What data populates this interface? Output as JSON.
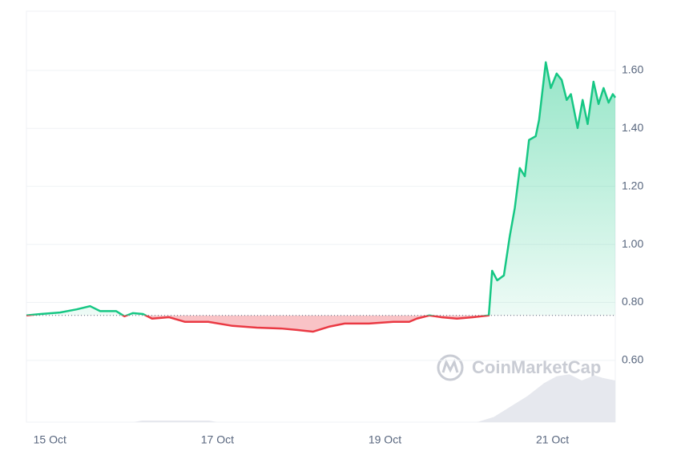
{
  "chart_data": {
    "type": "line",
    "watermark": "CoinMarketCap",
    "baseline": 0.755,
    "x": [
      14.72,
      14.89,
      15.12,
      15.32,
      15.48,
      15.6,
      15.79,
      15.89,
      15.99,
      16.11,
      16.22,
      16.42,
      16.61,
      16.89,
      17.18,
      17.47,
      17.76,
      17.95,
      18.14,
      18.33,
      18.52,
      18.81,
      19.1,
      19.29,
      19.38,
      19.53,
      19.67,
      19.86,
      20.05,
      20.24,
      20.28,
      20.34,
      20.42,
      20.49,
      20.55,
      20.61,
      20.67,
      20.72,
      20.8,
      20.84,
      20.92,
      20.98,
      21.05,
      21.11,
      21.17,
      21.22,
      21.3,
      21.36,
      21.42,
      21.49,
      21.55,
      21.61,
      21.67,
      21.72,
      21.75
    ],
    "series": [
      {
        "name": "Price",
        "color_up": "#16c784",
        "color_down": "#ea3943",
        "values": [
          0.755,
          0.76,
          0.765,
          0.776,
          0.787,
          0.77,
          0.77,
          0.752,
          0.763,
          0.76,
          0.744,
          0.749,
          0.733,
          0.733,
          0.719,
          0.713,
          0.71,
          0.705,
          0.699,
          0.716,
          0.727,
          0.727,
          0.733,
          0.733,
          0.744,
          0.755,
          0.749,
          0.744,
          0.749,
          0.755,
          0.909,
          0.876,
          0.893,
          1.028,
          1.125,
          1.263,
          1.235,
          1.36,
          1.373,
          1.429,
          1.628,
          1.539,
          1.589,
          1.567,
          1.498,
          1.518,
          1.401,
          1.498,
          1.415,
          1.561,
          1.484,
          1.539,
          1.489,
          1.518,
          1.506
        ]
      }
    ],
    "volume": {
      "color": "#e6e8ee",
      "vlim": [
        0,
        100
      ],
      "x": [
        14.72,
        15.5,
        16.0,
        16.1,
        16.9,
        17.0,
        20.1,
        20.3,
        20.5,
        20.7,
        20.9,
        21.05,
        21.2,
        21.35,
        21.5,
        21.6,
        21.75
      ],
      "values": [
        0,
        0,
        0,
        3,
        3,
        0,
        0,
        10,
        30,
        50,
        75,
        88,
        92,
        80,
        90,
        85,
        80
      ]
    },
    "xlim": [
      14.72,
      21.75
    ],
    "xticks": [
      {
        "value": 15,
        "label": "15 Oct"
      },
      {
        "value": 17,
        "label": "17 Oct"
      },
      {
        "value": 19,
        "label": "19 Oct"
      },
      {
        "value": 21,
        "label": "21 Oct"
      }
    ],
    "ylim": [
      0.387,
      1.804
    ],
    "yticks": [
      {
        "value": 0.6,
        "label": "0.60"
      },
      {
        "value": 0.8,
        "label": "0.80"
      },
      {
        "value": 1.0,
        "label": "1.00"
      },
      {
        "value": 1.2,
        "label": "1.20"
      },
      {
        "value": 1.4,
        "label": "1.40"
      },
      {
        "value": 1.6,
        "label": "1.60"
      }
    ],
    "grid": true
  }
}
